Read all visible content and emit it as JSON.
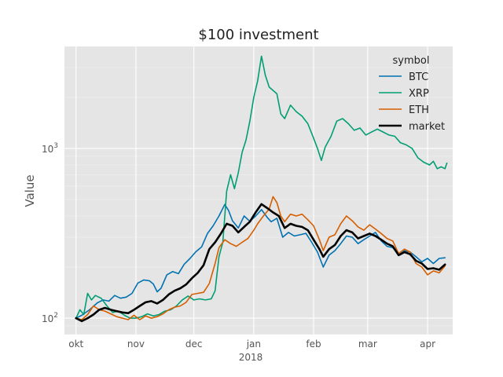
{
  "chart_data": {
    "type": "line",
    "title": "$100 investment",
    "xlabel": "",
    "ylabel": "Value",
    "yscale": "log",
    "ylim": [
      80,
      4000
    ],
    "xlim": [
      "2017-09-25",
      "2018-04-14"
    ],
    "y_ticks": [
      {
        "value": 100,
        "base": "10",
        "exp": "2"
      },
      {
        "value": 1000,
        "base": "10",
        "exp": "3"
      }
    ],
    "x_ticks": [
      {
        "date": "2017-10-01",
        "label": "okt"
      },
      {
        "date": "2017-11-01",
        "label": "nov"
      },
      {
        "date": "2017-12-01",
        "label": "dec"
      },
      {
        "date": "2018-01-01",
        "label": "jan"
      },
      {
        "date": "2018-02-01",
        "label": "feb"
      },
      {
        "date": "2018-03-01",
        "label": "mar"
      },
      {
        "date": "2018-04-01",
        "label": "apr"
      }
    ],
    "year_label": "2018",
    "grid": true,
    "legend": {
      "title": "symbol",
      "position": "top-right"
    },
    "series": [
      {
        "name": "BTC",
        "color": "#0072b2",
        "width": 1.6,
        "points": [
          [
            "2017-10-01",
            100
          ],
          [
            "2017-10-04",
            104
          ],
          [
            "2017-10-08",
            112
          ],
          [
            "2017-10-12",
            123
          ],
          [
            "2017-10-15",
            128
          ],
          [
            "2017-10-18",
            126
          ],
          [
            "2017-10-21",
            136
          ],
          [
            "2017-10-24",
            131
          ],
          [
            "2017-10-27",
            133
          ],
          [
            "2017-10-30",
            140
          ],
          [
            "2017-11-02",
            161
          ],
          [
            "2017-11-05",
            168
          ],
          [
            "2017-11-08",
            166
          ],
          [
            "2017-11-10",
            159
          ],
          [
            "2017-11-12",
            143
          ],
          [
            "2017-11-14",
            150
          ],
          [
            "2017-11-17",
            180
          ],
          [
            "2017-11-20",
            188
          ],
          [
            "2017-11-23",
            183
          ],
          [
            "2017-11-26",
            208
          ],
          [
            "2017-11-29",
            225
          ],
          [
            "2017-12-02",
            246
          ],
          [
            "2017-12-05",
            263
          ],
          [
            "2017-12-08",
            315
          ],
          [
            "2017-12-11",
            350
          ],
          [
            "2017-12-14",
            400
          ],
          [
            "2017-12-17",
            468
          ],
          [
            "2017-12-19",
            430
          ],
          [
            "2017-12-21",
            375
          ],
          [
            "2017-12-24",
            340
          ],
          [
            "2017-12-27",
            400
          ],
          [
            "2017-12-30",
            372
          ],
          [
            "2018-01-02",
            400
          ],
          [
            "2018-01-05",
            436
          ],
          [
            "2018-01-08",
            392
          ],
          [
            "2018-01-10",
            370
          ],
          [
            "2018-01-13",
            388
          ],
          [
            "2018-01-16",
            300
          ],
          [
            "2018-01-19",
            320
          ],
          [
            "2018-01-22",
            305
          ],
          [
            "2018-01-25",
            310
          ],
          [
            "2018-01-28",
            316
          ],
          [
            "2018-01-31",
            280
          ],
          [
            "2018-02-03",
            245
          ],
          [
            "2018-02-06",
            200
          ],
          [
            "2018-02-09",
            235
          ],
          [
            "2018-02-12",
            250
          ],
          [
            "2018-02-15",
            275
          ],
          [
            "2018-02-18",
            305
          ],
          [
            "2018-02-21",
            300
          ],
          [
            "2018-02-24",
            275
          ],
          [
            "2018-02-27",
            290
          ],
          [
            "2018-03-02",
            305
          ],
          [
            "2018-03-05",
            320
          ],
          [
            "2018-03-08",
            285
          ],
          [
            "2018-03-11",
            265
          ],
          [
            "2018-03-14",
            260
          ],
          [
            "2018-03-17",
            235
          ],
          [
            "2018-03-20",
            250
          ],
          [
            "2018-03-23",
            245
          ],
          [
            "2018-03-26",
            230
          ],
          [
            "2018-03-29",
            215
          ],
          [
            "2018-04-01",
            225
          ],
          [
            "2018-04-04",
            210
          ],
          [
            "2018-04-07",
            225
          ],
          [
            "2018-04-10",
            227
          ]
        ]
      },
      {
        "name": "XRP",
        "color": "#009e73",
        "width": 1.6,
        "points": [
          [
            "2017-10-01",
            100
          ],
          [
            "2017-10-03",
            112
          ],
          [
            "2017-10-05",
            105
          ],
          [
            "2017-10-07",
            140
          ],
          [
            "2017-10-09",
            128
          ],
          [
            "2017-10-11",
            136
          ],
          [
            "2017-10-14",
            131
          ],
          [
            "2017-10-17",
            118
          ],
          [
            "2017-10-20",
            108
          ],
          [
            "2017-10-23",
            110
          ],
          [
            "2017-10-26",
            104
          ],
          [
            "2017-10-29",
            100
          ],
          [
            "2017-11-01",
            100
          ],
          [
            "2017-11-04",
            102
          ],
          [
            "2017-11-07",
            106
          ],
          [
            "2017-11-10",
            103
          ],
          [
            "2017-11-13",
            105
          ],
          [
            "2017-11-16",
            110
          ],
          [
            "2017-11-19",
            112
          ],
          [
            "2017-11-22",
            118
          ],
          [
            "2017-11-25",
            128
          ],
          [
            "2017-11-28",
            135
          ],
          [
            "2017-12-01",
            128
          ],
          [
            "2017-12-04",
            130
          ],
          [
            "2017-12-07",
            128
          ],
          [
            "2017-12-10",
            130
          ],
          [
            "2017-12-12",
            145
          ],
          [
            "2017-12-14",
            230
          ],
          [
            "2017-12-16",
            280
          ],
          [
            "2017-12-18",
            560
          ],
          [
            "2017-12-20",
            700
          ],
          [
            "2017-12-22",
            580
          ],
          [
            "2017-12-24",
            720
          ],
          [
            "2017-12-26",
            950
          ],
          [
            "2017-12-28",
            1120
          ],
          [
            "2017-12-30",
            1450
          ],
          [
            "2018-01-01",
            2000
          ],
          [
            "2018-01-03",
            2500
          ],
          [
            "2018-01-05",
            3500
          ],
          [
            "2018-01-07",
            2700
          ],
          [
            "2018-01-09",
            2300
          ],
          [
            "2018-01-11",
            2200
          ],
          [
            "2018-01-13",
            2100
          ],
          [
            "2018-01-15",
            1600
          ],
          [
            "2018-01-17",
            1500
          ],
          [
            "2018-01-20",
            1800
          ],
          [
            "2018-01-23",
            1650
          ],
          [
            "2018-01-26",
            1550
          ],
          [
            "2018-01-29",
            1400
          ],
          [
            "2018-02-01",
            1150
          ],
          [
            "2018-02-03",
            1000
          ],
          [
            "2018-02-05",
            850
          ],
          [
            "2018-02-07",
            1020
          ],
          [
            "2018-02-10",
            1180
          ],
          [
            "2018-02-13",
            1450
          ],
          [
            "2018-02-16",
            1500
          ],
          [
            "2018-02-19",
            1400
          ],
          [
            "2018-02-22",
            1280
          ],
          [
            "2018-02-25",
            1320
          ],
          [
            "2018-02-28",
            1200
          ],
          [
            "2018-03-03",
            1250
          ],
          [
            "2018-03-06",
            1300
          ],
          [
            "2018-03-09",
            1250
          ],
          [
            "2018-03-12",
            1200
          ],
          [
            "2018-03-15",
            1180
          ],
          [
            "2018-03-18",
            1080
          ],
          [
            "2018-03-21",
            1050
          ],
          [
            "2018-03-24",
            1000
          ],
          [
            "2018-03-27",
            880
          ],
          [
            "2018-03-30",
            830
          ],
          [
            "2018-04-02",
            800
          ],
          [
            "2018-04-04",
            840
          ],
          [
            "2018-04-06",
            760
          ],
          [
            "2018-04-08",
            780
          ],
          [
            "2018-04-10",
            760
          ],
          [
            "2018-04-11",
            820
          ]
        ]
      },
      {
        "name": "ETH",
        "color": "#d55e00",
        "width": 1.6,
        "points": [
          [
            "2017-10-01",
            100
          ],
          [
            "2017-10-04",
            98
          ],
          [
            "2017-10-07",
            105
          ],
          [
            "2017-10-10",
            118
          ],
          [
            "2017-10-13",
            112
          ],
          [
            "2017-10-16",
            110
          ],
          [
            "2017-10-19",
            106
          ],
          [
            "2017-10-22",
            102
          ],
          [
            "2017-10-25",
            100
          ],
          [
            "2017-10-28",
            98
          ],
          [
            "2017-10-31",
            104
          ],
          [
            "2017-11-03",
            98
          ],
          [
            "2017-11-06",
            103
          ],
          [
            "2017-11-09",
            100
          ],
          [
            "2017-11-12",
            102
          ],
          [
            "2017-11-15",
            106
          ],
          [
            "2017-11-18",
            112
          ],
          [
            "2017-11-21",
            116
          ],
          [
            "2017-11-24",
            118
          ],
          [
            "2017-11-27",
            124
          ],
          [
            "2017-11-30",
            138
          ],
          [
            "2017-12-03",
            140
          ],
          [
            "2017-12-06",
            142
          ],
          [
            "2017-12-09",
            160
          ],
          [
            "2017-12-12",
            210
          ],
          [
            "2017-12-14",
            260
          ],
          [
            "2017-12-17",
            290
          ],
          [
            "2017-12-20",
            275
          ],
          [
            "2017-12-23",
            265
          ],
          [
            "2017-12-26",
            280
          ],
          [
            "2017-12-29",
            295
          ],
          [
            "2018-01-01",
            330
          ],
          [
            "2018-01-03",
            360
          ],
          [
            "2018-01-06",
            400
          ],
          [
            "2018-01-09",
            440
          ],
          [
            "2018-01-11",
            520
          ],
          [
            "2018-01-13",
            480
          ],
          [
            "2018-01-15",
            400
          ],
          [
            "2018-01-17",
            370
          ],
          [
            "2018-01-20",
            410
          ],
          [
            "2018-01-23",
            400
          ],
          [
            "2018-01-26",
            410
          ],
          [
            "2018-01-29",
            380
          ],
          [
            "2018-02-01",
            350
          ],
          [
            "2018-02-04",
            290
          ],
          [
            "2018-02-06",
            250
          ],
          [
            "2018-02-09",
            300
          ],
          [
            "2018-02-12",
            310
          ],
          [
            "2018-02-15",
            360
          ],
          [
            "2018-02-18",
            400
          ],
          [
            "2018-02-21",
            375
          ],
          [
            "2018-02-24",
            345
          ],
          [
            "2018-02-27",
            330
          ],
          [
            "2018-03-02",
            355
          ],
          [
            "2018-03-05",
            335
          ],
          [
            "2018-03-08",
            315
          ],
          [
            "2018-03-11",
            295
          ],
          [
            "2018-03-14",
            285
          ],
          [
            "2018-03-17",
            240
          ],
          [
            "2018-03-20",
            255
          ],
          [
            "2018-03-23",
            245
          ],
          [
            "2018-03-26",
            210
          ],
          [
            "2018-03-29",
            200
          ],
          [
            "2018-04-01",
            180
          ],
          [
            "2018-04-04",
            190
          ],
          [
            "2018-04-07",
            185
          ],
          [
            "2018-04-10",
            203
          ]
        ]
      },
      {
        "name": "market",
        "color": "#000000",
        "width": 2.6,
        "points": [
          [
            "2017-10-01",
            100
          ],
          [
            "2017-10-04",
            96
          ],
          [
            "2017-10-07",
            100
          ],
          [
            "2017-10-10",
            105
          ],
          [
            "2017-10-13",
            112
          ],
          [
            "2017-10-16",
            115
          ],
          [
            "2017-10-19",
            112
          ],
          [
            "2017-10-22",
            110
          ],
          [
            "2017-10-25",
            108
          ],
          [
            "2017-10-28",
            107
          ],
          [
            "2017-10-31",
            112
          ],
          [
            "2017-11-03",
            118
          ],
          [
            "2017-11-06",
            124
          ],
          [
            "2017-11-09",
            126
          ],
          [
            "2017-11-12",
            122
          ],
          [
            "2017-11-15",
            128
          ],
          [
            "2017-11-18",
            138
          ],
          [
            "2017-11-21",
            145
          ],
          [
            "2017-11-24",
            150
          ],
          [
            "2017-11-27",
            158
          ],
          [
            "2017-11-30",
            172
          ],
          [
            "2017-12-03",
            185
          ],
          [
            "2017-12-06",
            205
          ],
          [
            "2017-12-09",
            255
          ],
          [
            "2017-12-12",
            280
          ],
          [
            "2017-12-15",
            315
          ],
          [
            "2017-12-18",
            360
          ],
          [
            "2017-12-21",
            350
          ],
          [
            "2017-12-24",
            320
          ],
          [
            "2017-12-27",
            345
          ],
          [
            "2017-12-30",
            370
          ],
          [
            "2018-01-02",
            420
          ],
          [
            "2018-01-05",
            470
          ],
          [
            "2018-01-08",
            445
          ],
          [
            "2018-01-11",
            420
          ],
          [
            "2018-01-14",
            400
          ],
          [
            "2018-01-17",
            340
          ],
          [
            "2018-01-20",
            360
          ],
          [
            "2018-01-23",
            350
          ],
          [
            "2018-01-26",
            345
          ],
          [
            "2018-01-29",
            330
          ],
          [
            "2018-02-01",
            290
          ],
          [
            "2018-02-04",
            255
          ],
          [
            "2018-02-06",
            230
          ],
          [
            "2018-02-09",
            255
          ],
          [
            "2018-02-12",
            270
          ],
          [
            "2018-02-15",
            305
          ],
          [
            "2018-02-18",
            330
          ],
          [
            "2018-02-21",
            320
          ],
          [
            "2018-02-24",
            295
          ],
          [
            "2018-02-27",
            305
          ],
          [
            "2018-03-02",
            315
          ],
          [
            "2018-03-05",
            305
          ],
          [
            "2018-03-08",
            290
          ],
          [
            "2018-03-11",
            275
          ],
          [
            "2018-03-14",
            265
          ],
          [
            "2018-03-17",
            235
          ],
          [
            "2018-03-20",
            245
          ],
          [
            "2018-03-23",
            238
          ],
          [
            "2018-03-26",
            218
          ],
          [
            "2018-03-29",
            210
          ],
          [
            "2018-04-01",
            195
          ],
          [
            "2018-04-04",
            197
          ],
          [
            "2018-04-07",
            193
          ],
          [
            "2018-04-10",
            207
          ]
        ]
      }
    ]
  }
}
